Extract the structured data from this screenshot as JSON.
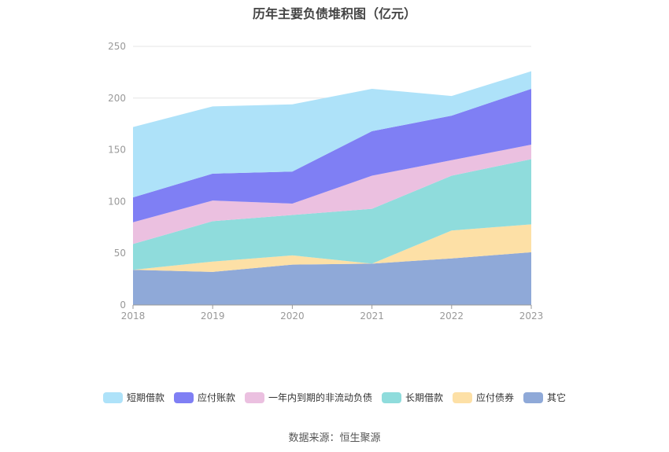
{
  "chart_data": {
    "type": "area",
    "stacked": true,
    "title": "历年主要负债堆积图（亿元）",
    "categories": [
      "2018",
      "2019",
      "2020",
      "2021",
      "2022",
      "2023"
    ],
    "ylim": [
      0,
      250
    ],
    "yticks": [
      "0",
      "50",
      "100",
      "150",
      "200",
      "250"
    ],
    "grid": true,
    "legend_position": "bottom",
    "series": [
      {
        "name": "其它",
        "color": "#8fa9d8",
        "values": [
          34,
          32,
          39,
          40,
          45,
          51
        ]
      },
      {
        "name": "应付债券",
        "color": "#fde0a6",
        "values": [
          0,
          10,
          9,
          0,
          27,
          27
        ]
      },
      {
        "name": "长期借款",
        "color": "#8fdcdc",
        "values": [
          25,
          39,
          39,
          53,
          53,
          63
        ]
      },
      {
        "name": "一年内到期的非流动负债",
        "color": "#ebc0e0",
        "values": [
          21,
          20,
          11,
          32,
          15,
          14
        ]
      },
      {
        "name": "应付账款",
        "color": "#7f7ff4",
        "values": [
          24,
          26,
          31,
          43,
          43,
          54
        ]
      },
      {
        "name": "短期借款",
        "color": "#aee2f9",
        "values": [
          68,
          65,
          65,
          41,
          19,
          17
        ]
      }
    ]
  },
  "legend_order": [
    "短期借款",
    "应付账款",
    "一年内到期的非流动负债",
    "长期借款",
    "应付债券",
    "其它"
  ],
  "source": "数据来源：恒生聚源"
}
